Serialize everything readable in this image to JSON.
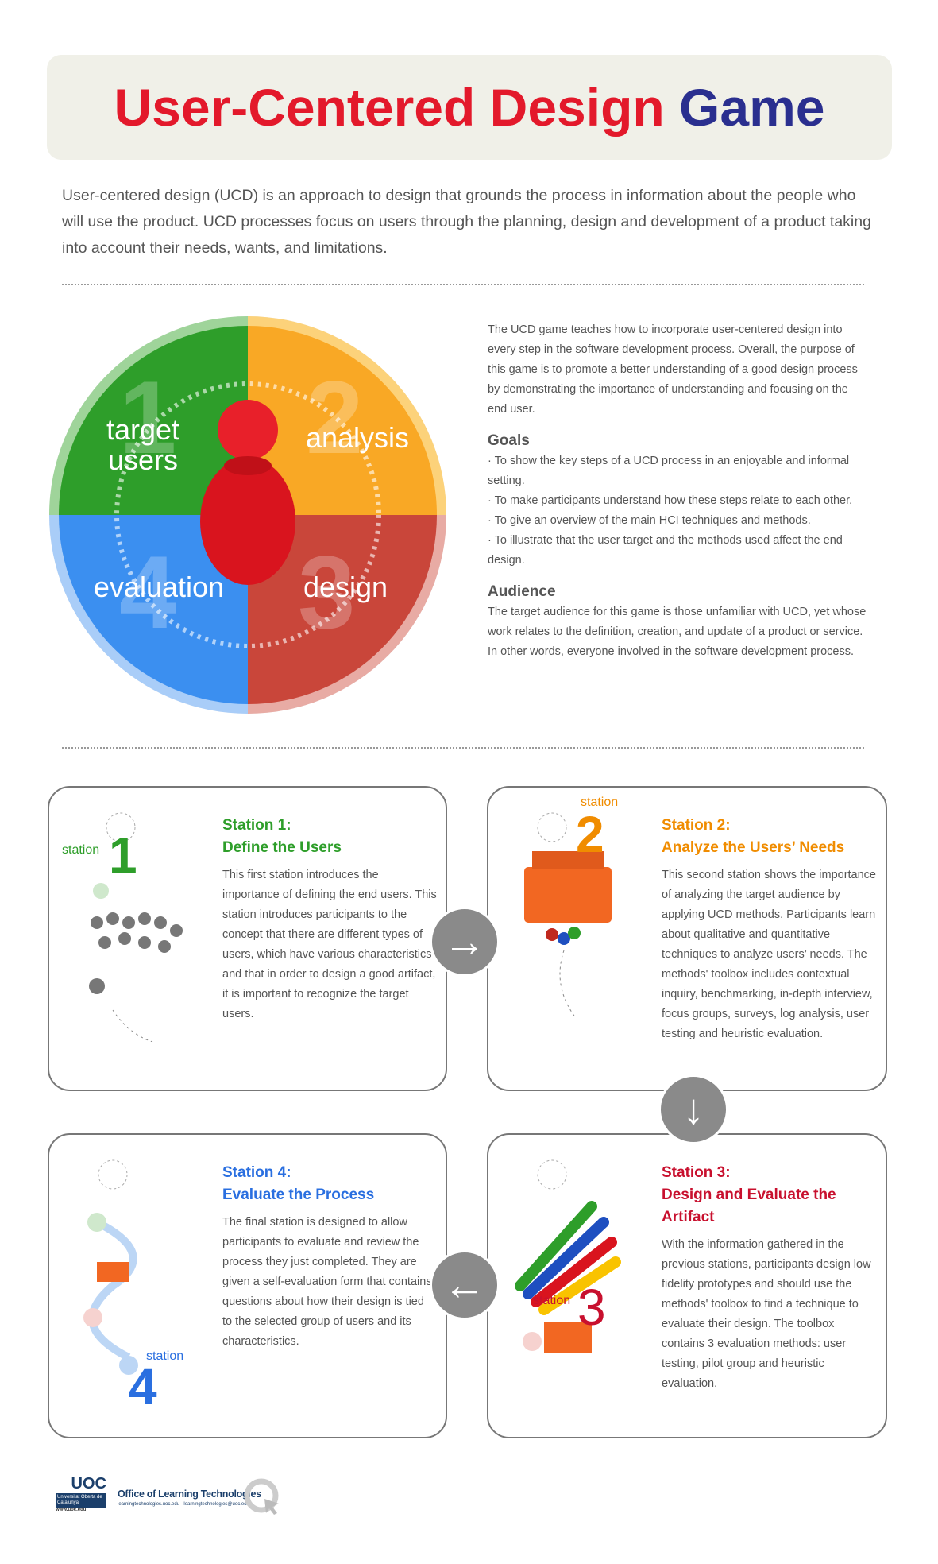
{
  "title": {
    "part1": "User-Centered Design",
    "part2": "Game"
  },
  "intro": "User-centered design (UCD) is an approach to design that grounds the process in information about the people who will use the product. UCD processes focus on users through the planning, design and development of a product taking into account their needs, wants, and limitations.",
  "wheel": {
    "segments": [
      {
        "label": "target users",
        "number": "1",
        "color": "#2e9e2a"
      },
      {
        "label": "analysis",
        "number": "2",
        "color": "#f9a825"
      },
      {
        "label": "design",
        "number": "3",
        "color": "#c9463a"
      },
      {
        "label": "evaluation",
        "number": "4",
        "color": "#3b8ff0"
      }
    ]
  },
  "about": {
    "text": "The UCD game teaches how to incorporate user-centered design into every step in the software development process. Overall, the purpose of this game is to promote a better understanding of a good design process by demonstrating the importance of understanding and focusing on the end user.",
    "goals_title": "Goals",
    "goals": [
      "· To show the key steps of a UCD process in an enjoyable and informal setting.",
      "· To make participants understand how these steps relate to each other.",
      "· To give an overview of the main HCI techniques and methods.",
      "· To illustrate that the user target and the methods used affect the end design."
    ],
    "audience_title": "Audience",
    "audience": "The target audience for this game is those unfamiliar with UCD, yet whose work relates to the definition, creation, and update of a product or service. In other words, everyone involved in the software development process."
  },
  "stations": [
    {
      "label": "station",
      "number": "1",
      "title1": "Station 1:",
      "title2": "Define the Users",
      "color": "#2e9e2a",
      "text": "This first station introduces the importance of defining the end users. This station introduces participants to the concept that there are different types of users, which have various characteristics and that in order to design a good artifact, it is important to recognize the target users."
    },
    {
      "label": "station",
      "number": "2",
      "title1": "Station 2:",
      "title2": "Analyze the Users’ Needs",
      "color": "#f08c00",
      "text": "This second station shows the importance of analyzing the target audience by applying UCD methods. Participants learn about qualitative and quantitative techniques to analyze users’ needs. The methods' toolbox includes contextual inquiry, benchmarking, in-depth interview, focus groups, surveys, log analysis, user testing and heuristic evaluation."
    },
    {
      "label": "station",
      "number": "3",
      "title1": "Station 3:",
      "title2": "Design and Evaluate the Artifact",
      "color": "#c8102e",
      "text": "With the information gathered in the previous stations, participants design low fidelity prototypes and should use the methods' toolbox to find a technique to evaluate their design. The toolbox contains 3 evaluation methods: user testing, pilot group and heuristic evaluation."
    },
    {
      "label": "station",
      "number": "4",
      "title1": "Station 4:",
      "title2": "Evaluate the Process",
      "color": "#2a6fe0",
      "text": "The final station is designed to allow participants to evaluate and review the process they just completed. They are given a self-evaluation form that contains questions about how their design is tied to the selected group of users and its characteristics."
    }
  ],
  "arrows": {
    "right": "→",
    "down": "↓",
    "left": "←"
  },
  "footer": {
    "logo": "UOC",
    "university": "Universitat Oberta de Catalunya",
    "site": "www.uoc.edu",
    "office": "Office of Learning Technologies",
    "contact": "learningtechnologies.uoc.edu - learningtechnologies@uoc.edu"
  }
}
